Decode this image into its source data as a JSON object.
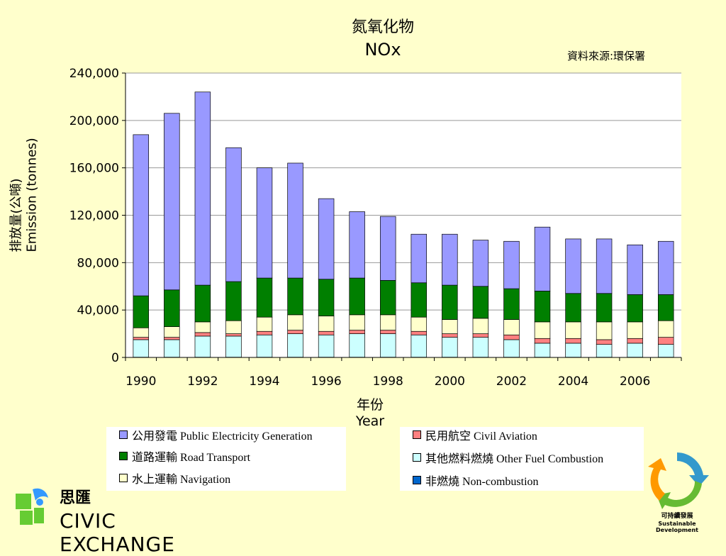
{
  "title_cn": "氮氧化物",
  "title_en": "NOx",
  "source": "資料來源:環保署",
  "y_label_cn": "排放量(公噸)",
  "y_label_en": "Emission (tonnes)",
  "x_label_cn": "年份",
  "x_label_en": "Year",
  "logo_civic": {
    "cn": "思匯",
    "en": "CIVIC EXCHANGE"
  },
  "logo_sd": {
    "cn": "可持續發展",
    "en": "Sustainable Development"
  },
  "legend": [
    {
      "label": "公用發電 Public Electricity Generation",
      "color": "#9999ff"
    },
    {
      "label": "道路運輸 Road Transport",
      "color": "#007f00"
    },
    {
      "label": "水上運輸 Navigation",
      "color": "#ffffcc"
    },
    {
      "label": "民用航空 Civil Aviation",
      "color": "#ff8080"
    },
    {
      "label": "其他燃料燃燒 Other Fuel Combustion",
      "color": "#ccffff"
    },
    {
      "label": "非燃燒 Non-combustion",
      "color": "#0066cc"
    }
  ],
  "chart_data": {
    "type": "bar",
    "stacked": true,
    "title": "氮氧化物 NOx",
    "xlabel": "年份 Year",
    "ylabel": "排放量(公噸) Emission (tonnes)",
    "ylim": [
      0,
      240000
    ],
    "yticks": [
      "0",
      "40,000",
      "80,000",
      "120,000",
      "160,000",
      "200,000",
      "240,000"
    ],
    "grid": true,
    "categories": [
      "1990",
      "1991",
      "1992",
      "1993",
      "1994",
      "1995",
      "1996",
      "1997",
      "1998",
      "1999",
      "2000",
      "2001",
      "2002",
      "2003",
      "2004",
      "2005",
      "2006",
      "2007"
    ],
    "x_tick_labels": [
      "1990",
      "",
      "1992",
      "",
      "1994",
      "",
      "1996",
      "",
      "1998",
      "",
      "2000",
      "",
      "2002",
      "",
      "2004",
      "",
      "2006",
      ""
    ],
    "series": [
      {
        "name": "非燃燒 Non-combustion",
        "color": "#0066cc",
        "values": [
          200,
          200,
          200,
          200,
          200,
          200,
          200,
          200,
          200,
          200,
          200,
          200,
          200,
          200,
          200,
          200,
          200,
          200
        ]
      },
      {
        "name": "其他燃料燃燒 Other Fuel Combustion",
        "color": "#ccffff",
        "values": [
          14800,
          14800,
          17800,
          17800,
          18800,
          19800,
          18800,
          19800,
          19800,
          18800,
          16800,
          16800,
          14800,
          11800,
          11800,
          10800,
          11800,
          10800
        ]
      },
      {
        "name": "民用航空 Civil Aviation",
        "color": "#ff8080",
        "values": [
          2000,
          2000,
          3000,
          2000,
          3000,
          3000,
          3000,
          3000,
          3000,
          3000,
          3000,
          3000,
          4000,
          4000,
          4000,
          4000,
          4000,
          6000
        ]
      },
      {
        "name": "水上運輸 Navigation",
        "color": "#ffffcc",
        "values": [
          8000,
          9000,
          9000,
          11000,
          12000,
          13000,
          13000,
          13000,
          13000,
          12000,
          12000,
          13000,
          13000,
          14000,
          14000,
          15000,
          14000,
          14000
        ]
      },
      {
        "name": "道路運輸 Road Transport",
        "color": "#007f00",
        "values": [
          27000,
          31000,
          31000,
          33000,
          33000,
          31000,
          31000,
          31000,
          29000,
          29000,
          29000,
          27000,
          26000,
          26000,
          24000,
          24000,
          23000,
          22000
        ]
      },
      {
        "name": "公用發電 Public Electricity Generation",
        "color": "#9999ff",
        "values": [
          136000,
          149000,
          163000,
          113000,
          93000,
          97000,
          68000,
          56000,
          54000,
          41000,
          43000,
          39000,
          40000,
          54000,
          46000,
          46000,
          42000,
          45000
        ]
      }
    ]
  }
}
